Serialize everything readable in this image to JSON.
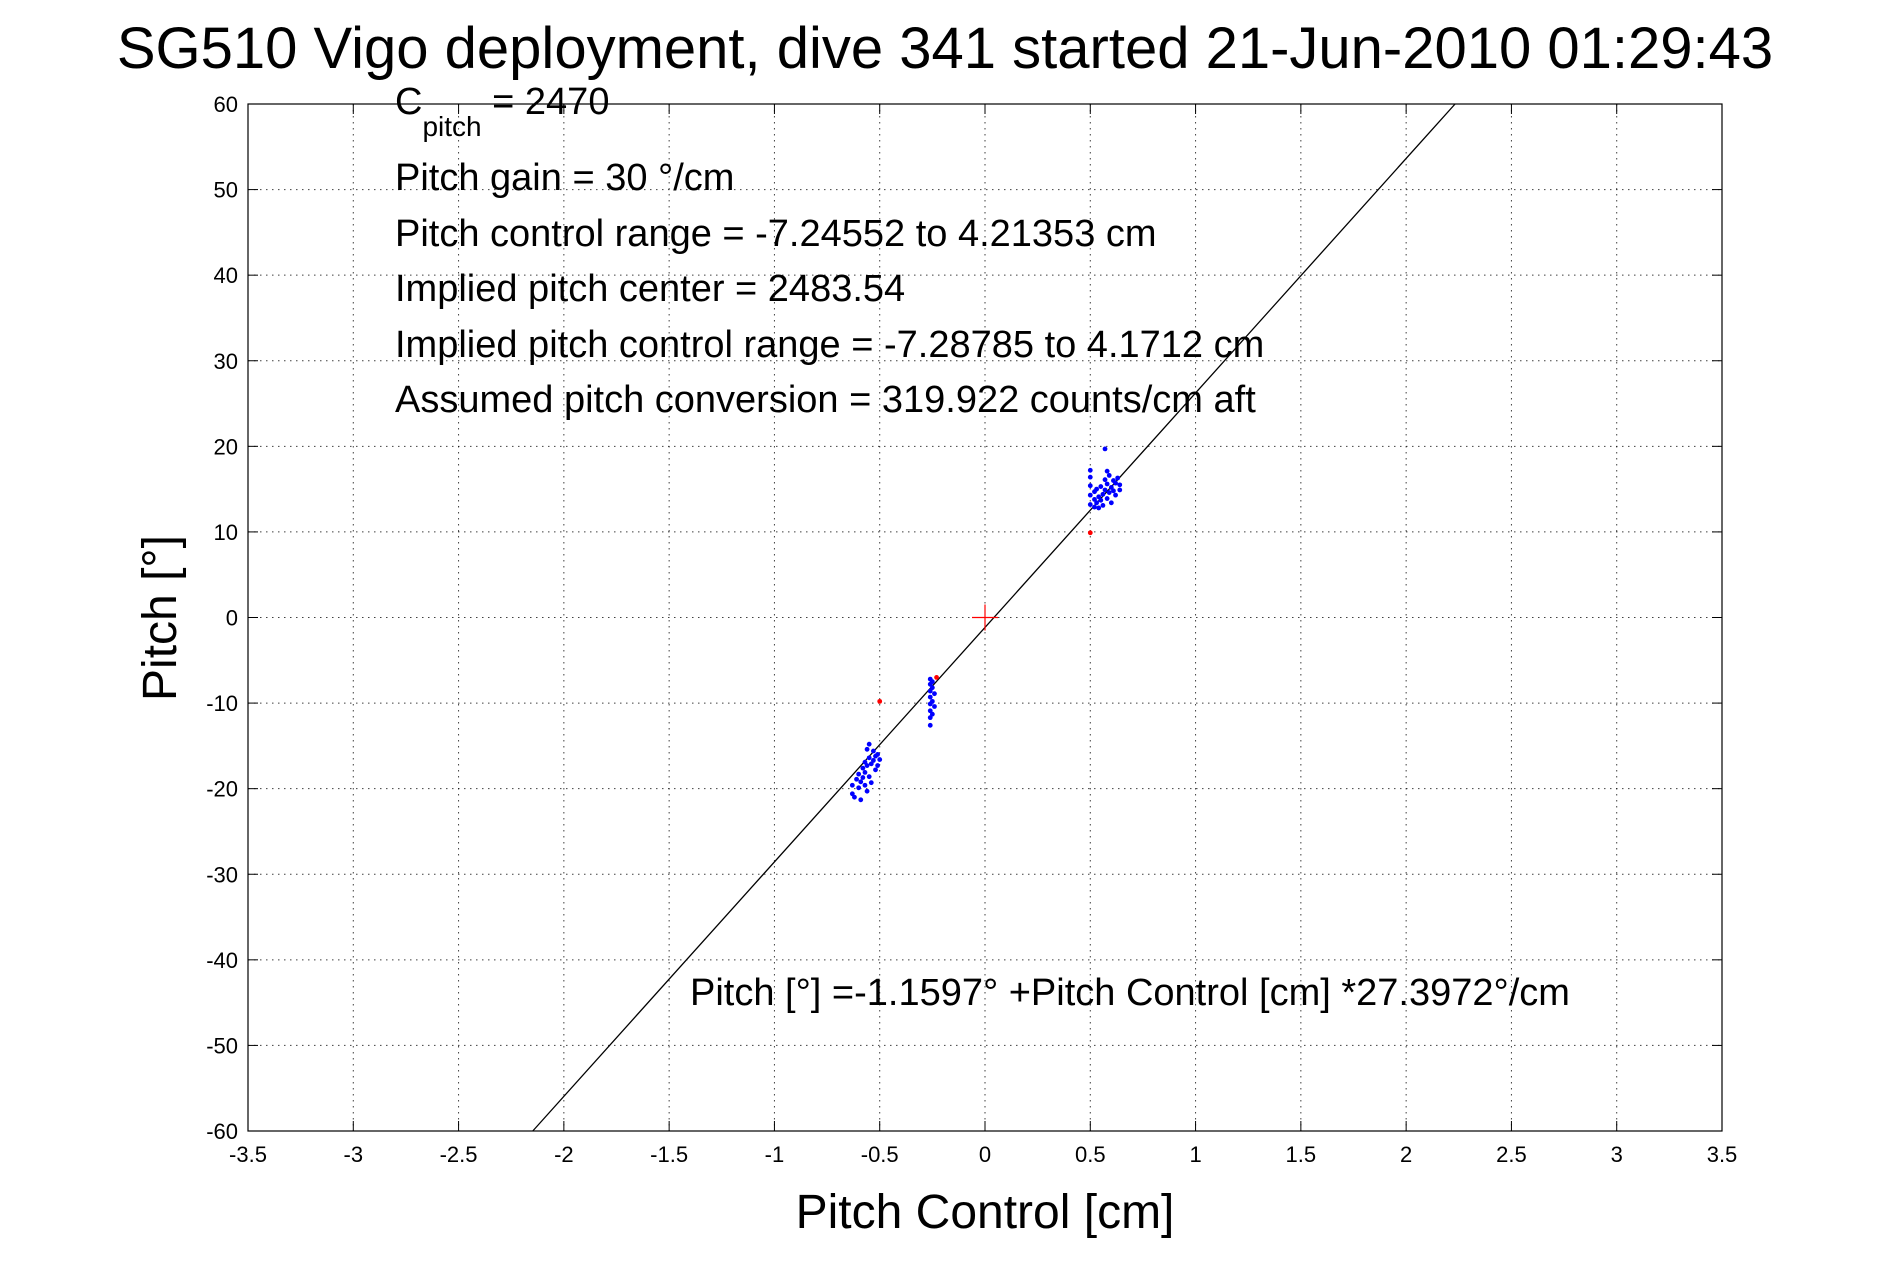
{
  "chart_data": {
    "type": "scatter",
    "title": "SG510 Vigo deployment, dive 341 started 21-Jun-2010 01:29:43",
    "xlabel": "Pitch Control [cm]",
    "ylabel": "Pitch [°]",
    "xlim": [
      -3.5,
      3.5
    ],
    "ylim": [
      -60,
      60
    ],
    "xticks": [
      -3.5,
      -3,
      -2.5,
      -2,
      -1.5,
      -1,
      -0.5,
      0,
      0.5,
      1,
      1.5,
      2,
      2.5,
      3,
      3.5
    ],
    "xtick_labels": [
      "-3.5",
      "-3",
      "-2.5",
      "-2",
      "-1.5",
      "-1",
      "-0.5",
      "0",
      "0.5",
      "1",
      "1.5",
      "2",
      "2.5",
      "3",
      "3.5"
    ],
    "yticks": [
      -60,
      -50,
      -40,
      -30,
      -20,
      -10,
      0,
      10,
      20,
      30,
      40,
      50,
      60
    ],
    "ytick_labels": [
      "-60",
      "-50",
      "-40",
      "-30",
      "-20",
      "-10",
      "0",
      "10",
      "20",
      "30",
      "40",
      "50",
      "60"
    ],
    "grid": true,
    "colors": {
      "fit_line": "#000000",
      "points": "#0000ff",
      "outliers": "#ff0000",
      "center_marker": "#ff0000"
    },
    "annotations": {
      "c_pitch_base": "C",
      "c_pitch_sub": "pitch",
      "c_pitch_value": " = 2470",
      "gain": "Pitch gain = 30 °/cm",
      "range": "Pitch control range = -7.24552 to 4.21353 cm",
      "implied_center": "Implied pitch center = 2483.54",
      "implied_range": "Implied pitch control range = -7.28785 to 4.1712 cm",
      "conversion": "Assumed pitch conversion = 319.922 counts/cm aft",
      "equation": "Pitch [°] =-1.1597° +Pitch Control [cm] *27.3972°/cm"
    },
    "fit": {
      "intercept": -1.1597,
      "slope": 27.3972
    },
    "center_marker": {
      "x": 0,
      "y": 0
    },
    "outliers": [
      {
        "x": -0.5,
        "y": -9.8
      },
      {
        "x": -0.23,
        "y": -7.0
      },
      {
        "x": 0.5,
        "y": 9.9
      }
    ],
    "series": [
      {
        "values": [
          {
            "x": -0.63,
            "y": -19.6
          },
          {
            "x": -0.63,
            "y": -20.6
          },
          {
            "x": -0.62,
            "y": -21.0
          },
          {
            "x": -0.61,
            "y": -18.9
          },
          {
            "x": -0.6,
            "y": -19.9
          },
          {
            "x": -0.6,
            "y": -18.3
          },
          {
            "x": -0.59,
            "y": -19.2
          },
          {
            "x": -0.59,
            "y": -21.3
          },
          {
            "x": -0.58,
            "y": -18.7
          },
          {
            "x": -0.58,
            "y": -17.6
          },
          {
            "x": -0.57,
            "y": -19.6
          },
          {
            "x": -0.57,
            "y": -18.1
          },
          {
            "x": -0.57,
            "y": -16.9
          },
          {
            "x": -0.56,
            "y": -20.3
          },
          {
            "x": -0.56,
            "y": -17.3
          },
          {
            "x": -0.56,
            "y": -15.4
          },
          {
            "x": -0.55,
            "y": -18.6
          },
          {
            "x": -0.55,
            "y": -16.4
          },
          {
            "x": -0.55,
            "y": -14.8
          },
          {
            "x": -0.54,
            "y": -19.3
          },
          {
            "x": -0.54,
            "y": -17.1
          },
          {
            "x": -0.53,
            "y": -16.7
          },
          {
            "x": -0.53,
            "y": -15.6
          },
          {
            "x": -0.52,
            "y": -17.8
          },
          {
            "x": -0.52,
            "y": -16.2
          },
          {
            "x": -0.51,
            "y": -17.3
          },
          {
            "x": -0.51,
            "y": -16.0
          },
          {
            "x": -0.5,
            "y": -16.6
          },
          {
            "x": -0.26,
            "y": -12.6
          },
          {
            "x": -0.26,
            "y": -11.7
          },
          {
            "x": -0.26,
            "y": -10.9
          },
          {
            "x": -0.26,
            "y": -10.1
          },
          {
            "x": -0.26,
            "y": -9.3
          },
          {
            "x": -0.26,
            "y": -8.6
          },
          {
            "x": -0.26,
            "y": -7.8
          },
          {
            "x": -0.26,
            "y": -7.2
          },
          {
            "x": -0.25,
            "y": -11.3
          },
          {
            "x": -0.25,
            "y": -9.8
          },
          {
            "x": -0.25,
            "y": -8.2
          },
          {
            "x": -0.25,
            "y": -7.5
          },
          {
            "x": -0.24,
            "y": -10.4
          },
          {
            "x": -0.24,
            "y": -8.9
          },
          {
            "x": 0.5,
            "y": 13.2
          },
          {
            "x": 0.5,
            "y": 14.3
          },
          {
            "x": 0.5,
            "y": 15.4
          },
          {
            "x": 0.5,
            "y": 16.4
          },
          {
            "x": 0.5,
            "y": 17.2
          },
          {
            "x": 0.52,
            "y": 12.9
          },
          {
            "x": 0.52,
            "y": 13.8
          },
          {
            "x": 0.52,
            "y": 14.7
          },
          {
            "x": 0.53,
            "y": 13.4
          },
          {
            "x": 0.53,
            "y": 15.0
          },
          {
            "x": 0.54,
            "y": 14.1
          },
          {
            "x": 0.54,
            "y": 12.8
          },
          {
            "x": 0.55,
            "y": 13.7
          },
          {
            "x": 0.55,
            "y": 15.3
          },
          {
            "x": 0.56,
            "y": 14.4
          },
          {
            "x": 0.56,
            "y": 13.1
          },
          {
            "x": 0.57,
            "y": 14.9
          },
          {
            "x": 0.57,
            "y": 16.1
          },
          {
            "x": 0.57,
            "y": 19.7
          },
          {
            "x": 0.58,
            "y": 13.9
          },
          {
            "x": 0.58,
            "y": 15.6
          },
          {
            "x": 0.58,
            "y": 17.1
          },
          {
            "x": 0.59,
            "y": 14.6
          },
          {
            "x": 0.59,
            "y": 16.6
          },
          {
            "x": 0.6,
            "y": 15.2
          },
          {
            "x": 0.6,
            "y": 13.4
          },
          {
            "x": 0.61,
            "y": 16.0
          },
          {
            "x": 0.61,
            "y": 14.8
          },
          {
            "x": 0.62,
            "y": 15.7
          },
          {
            "x": 0.62,
            "y": 14.3
          },
          {
            "x": 0.63,
            "y": 16.3
          },
          {
            "x": 0.64,
            "y": 15.5
          },
          {
            "x": 0.64,
            "y": 14.9
          }
        ]
      }
    ]
  }
}
